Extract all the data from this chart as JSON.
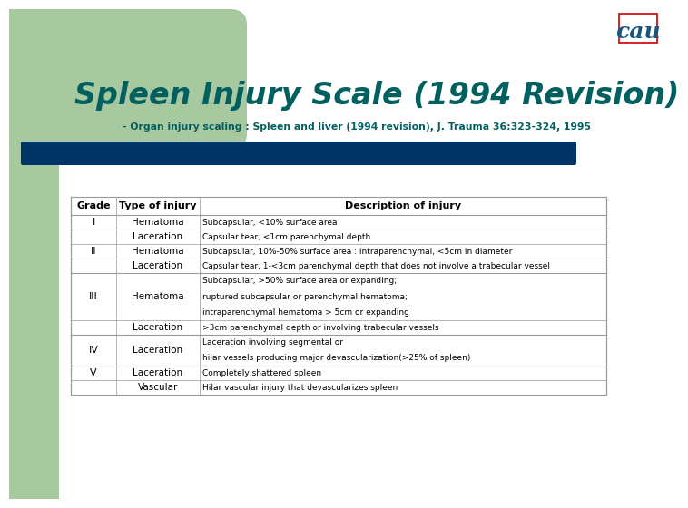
{
  "title": "Spleen Injury Scale (1994 Revision)",
  "subtitle": "- Organ injury scaling : Spleen and liver (1994 revision), J. Trauma 36:323-324, 1995",
  "title_color": "#006060",
  "subtitle_color": "#006060",
  "bg_color": "#ffffff",
  "left_panel_color": "#a8c8a0",
  "top_bar_color": "#003366",
  "table": {
    "col_headers": [
      "Grade",
      "Type of injury",
      "Description of injury"
    ],
    "rows": [
      {
        "grade": "I",
        "type": "Hematoma",
        "desc": "Subcapsular, <10% surface area"
      },
      {
        "grade": "",
        "type": "Laceration",
        "desc": "Capsular tear, <1cm parenchymal depth"
      },
      {
        "grade": "II",
        "type": "Hematoma",
        "desc": "Subcapsular, 10%-50% surface area : intraparenchymal, <5cm in diameter"
      },
      {
        "grade": "",
        "type": "Laceration",
        "desc": "Capsular tear, 1-<3cm parenchymal depth that does not involve a trabecular vessel"
      },
      {
        "grade": "III",
        "type": "Hematoma",
        "desc": "Subcapsular, >50% surface area or expanding;\nruptured subcapsular or parenchymal hematoma;\nintraparenchymal hematoma > 5cm or expanding"
      },
      {
        "grade": "",
        "type": "Laceration",
        "desc": ">3cm parenchymal depth or involving trabecular vessels"
      },
      {
        "grade": "IV",
        "type": "Laceration",
        "desc": "Laceration involving segmental or\nhilar vessels producing major devascularization(>25% of spleen)"
      },
      {
        "grade": "V",
        "type": "Laceration",
        "desc": "Completely shattered spleen"
      },
      {
        "grade": "",
        "type": "Vascular",
        "desc": "Hilar vascular injury that devascularizes spleen"
      }
    ],
    "border_color": "#999999",
    "text_color": "#000000",
    "header_text_color": "#000000"
  },
  "logo_box_color": "#cc0000",
  "logo_text": "cau",
  "logo_text_color": "#1a5580"
}
